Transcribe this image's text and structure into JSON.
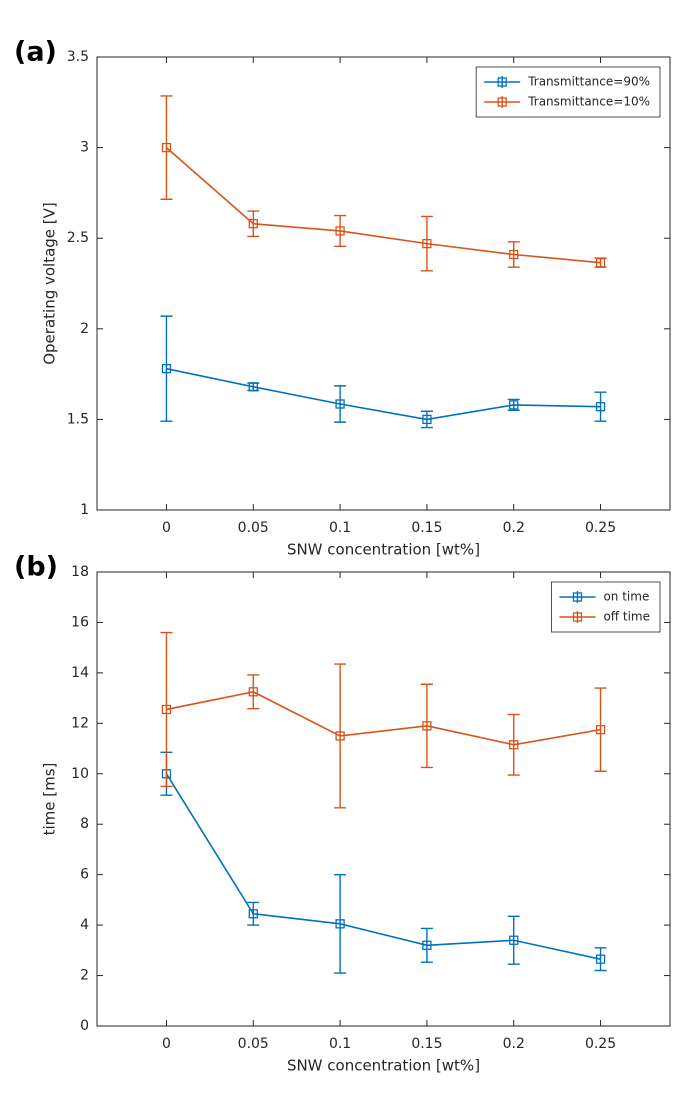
{
  "chart_data": [
    {
      "type": "line",
      "panel_label": "(a)",
      "xlabel": "SNW concentration [wt%]",
      "ylabel": "Operating voltage [V]",
      "x": [
        0,
        0.05,
        0.1,
        0.15,
        0.2,
        0.25
      ],
      "xlim": [
        -0.04,
        0.29
      ],
      "xticks": [
        0,
        0.05,
        0.1,
        0.15,
        0.2,
        0.25
      ],
      "ylim": [
        1,
        3.5
      ],
      "yticks": [
        1,
        1.5,
        2,
        2.5,
        3,
        3.5
      ],
      "grid": false,
      "legend": "upper right",
      "series": [
        {
          "name": "Transmittance=90%",
          "color": "#0072BD",
          "values": [
            1.78,
            1.68,
            1.585,
            1.5,
            1.58,
            1.57
          ],
          "errors": [
            0.29,
            0.02,
            0.1,
            0.045,
            0.03,
            0.08
          ]
        },
        {
          "name": "Transmittance=10%",
          "color": "#D95319",
          "values": [
            3.0,
            2.58,
            2.54,
            2.47,
            2.41,
            2.365
          ],
          "errors": [
            0.285,
            0.07,
            0.085,
            0.15,
            0.07,
            0.025
          ]
        }
      ]
    },
    {
      "type": "line",
      "panel_label": "(b)",
      "xlabel": "SNW concentration [wt%]",
      "ylabel": "time [ms]",
      "x": [
        0,
        0.05,
        0.1,
        0.15,
        0.2,
        0.25
      ],
      "xlim": [
        -0.04,
        0.29
      ],
      "xticks": [
        0,
        0.05,
        0.1,
        0.15,
        0.2,
        0.25
      ],
      "ylim": [
        0,
        18
      ],
      "yticks": [
        0,
        2,
        4,
        6,
        8,
        10,
        12,
        14,
        16,
        18
      ],
      "grid": false,
      "legend": "upper right",
      "series": [
        {
          "name": "on time",
          "color": "#0072BD",
          "values": [
            10.0,
            4.45,
            4.05,
            3.2,
            3.4,
            2.65
          ],
          "errors": [
            0.85,
            0.45,
            1.95,
            0.67,
            0.95,
            0.45
          ]
        },
        {
          "name": "off time",
          "color": "#D95319",
          "values": [
            12.55,
            13.25,
            11.5,
            11.9,
            11.15,
            11.75
          ],
          "errors": [
            3.05,
            0.67,
            2.85,
            1.65,
            1.2,
            1.65
          ]
        }
      ]
    }
  ]
}
